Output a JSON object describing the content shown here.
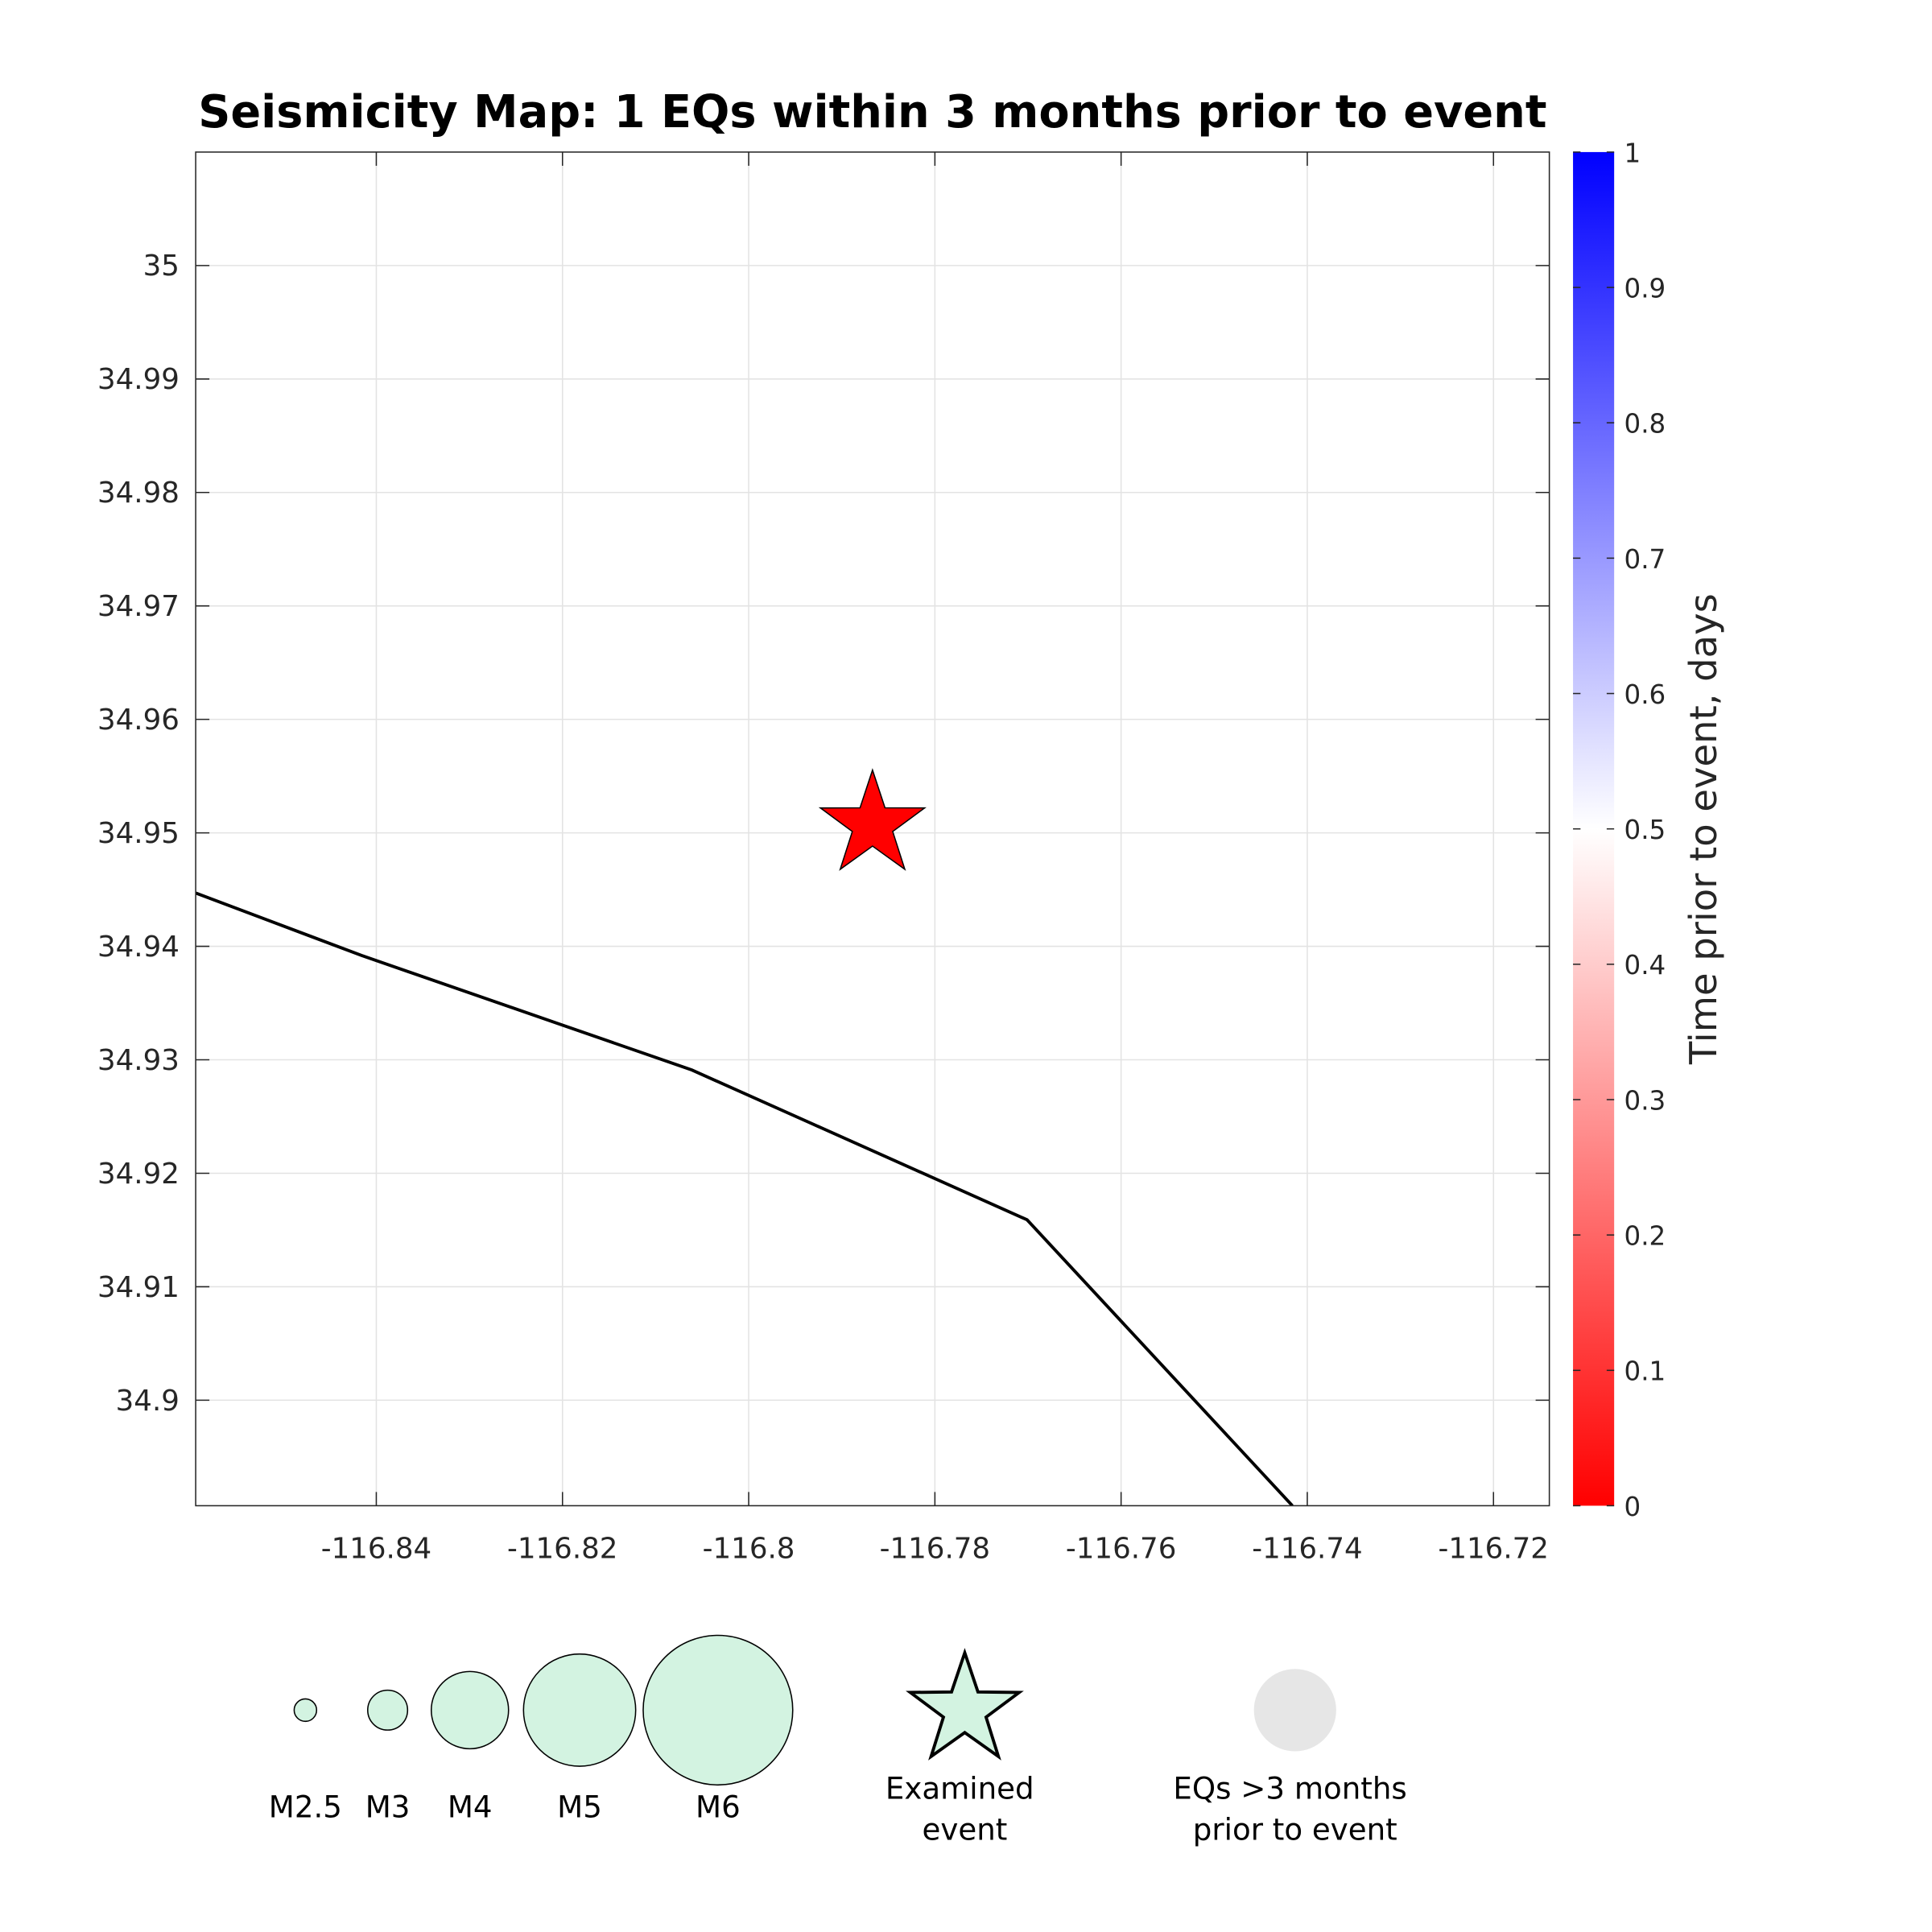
{
  "chart_data": {
    "type": "scatter",
    "title": "Seismicity Map: 1 EQs within 3 months prior to event",
    "xlabel": "",
    "ylabel": "",
    "xlim": [
      -116.8594,
      -116.714
    ],
    "ylim": [
      34.8907,
      35.01
    ],
    "x_ticks": [
      "-116.84",
      "-116.82",
      "-116.8",
      "-116.78",
      "-116.76",
      "-116.74",
      "-116.72"
    ],
    "y_ticks": [
      "34.9",
      "34.91",
      "34.92",
      "34.93",
      "34.94",
      "34.95",
      "34.96",
      "34.97",
      "34.98",
      "34.99",
      "35"
    ],
    "grid": true,
    "examined_event": {
      "lon": -116.7867,
      "lat": 34.9507,
      "marker": "star",
      "color": "#ff0000"
    },
    "fault_trace": [
      {
        "lon": -116.8594,
        "lat": 34.9447
      },
      {
        "lon": -116.8416,
        "lat": 34.9392
      },
      {
        "lon": -116.8061,
        "lat": 34.9291
      },
      {
        "lon": -116.7701,
        "lat": 34.9159
      },
      {
        "lon": -116.7416,
        "lat": 34.8907
      }
    ],
    "colorbar": {
      "label": "Time prior to event, days",
      "range": [
        0,
        1
      ],
      "ticks": [
        "0",
        "0.1",
        "0.2",
        "0.3",
        "0.4",
        "0.5",
        "0.6",
        "0.7",
        "0.8",
        "0.9",
        "1"
      ],
      "colors": [
        "#ff0000",
        "#ffffff",
        "#0000ff"
      ]
    },
    "legend": {
      "magnitudes": [
        "M2.5",
        "M3",
        "M4",
        "M5",
        "M6"
      ],
      "magnitude_fill": "#d3f3e1",
      "examined_label_1": "Examined",
      "examined_label_2": "event",
      "old_label_1": "EQs >3 months",
      "old_label_2": "prior to event",
      "old_fill": "#e6e6e6"
    }
  }
}
